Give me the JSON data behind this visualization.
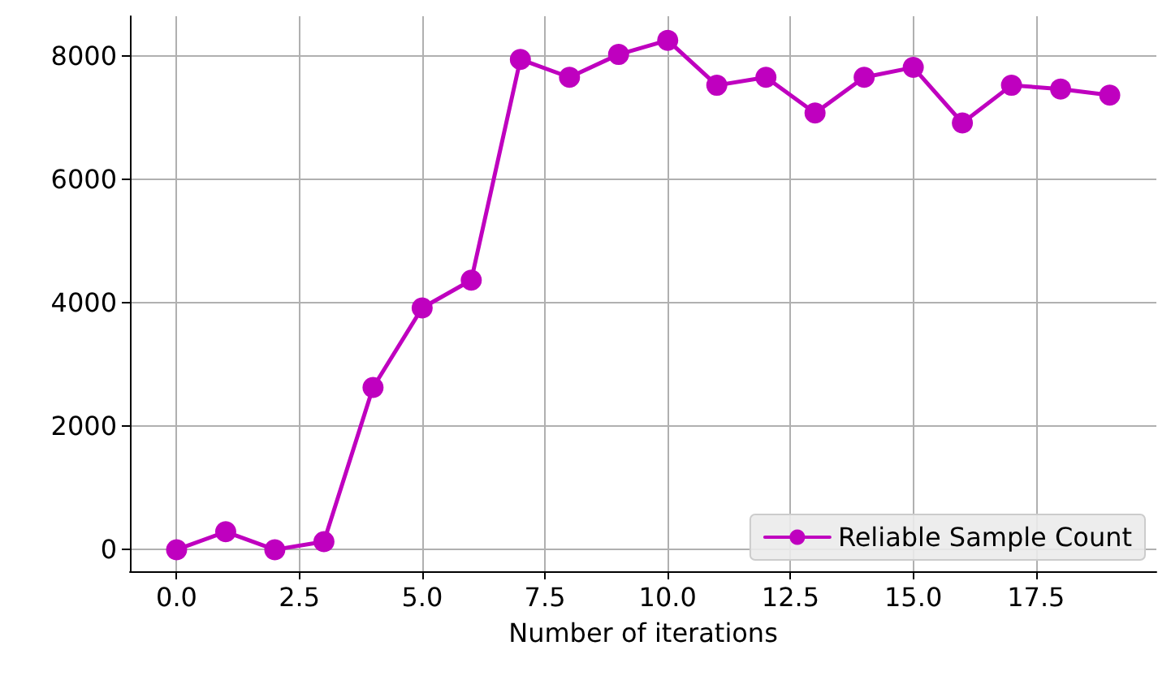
{
  "chart_data": {
    "type": "line",
    "xlabel": "Number of iterations",
    "x": [
      0,
      1,
      2,
      3,
      4,
      5,
      6,
      7,
      8,
      9,
      10,
      11,
      12,
      13,
      14,
      15,
      16,
      17,
      18,
      19
    ],
    "series": [
      {
        "name": "Reliable Sample Count",
        "color": "#bf00bf",
        "values": [
          0,
          290,
          0,
          130,
          2630,
          3920,
          4370,
          7950,
          7660,
          8030,
          8260,
          7530,
          7660,
          7080,
          7660,
          7820,
          6920,
          7530,
          7470,
          7370
        ]
      }
    ],
    "xlim": [
      -0.95,
      19.95
    ],
    "xticks": [
      {
        "value": 0,
        "label": "0.0"
      },
      {
        "value": 2.5,
        "label": "2.5"
      },
      {
        "value": 5,
        "label": "5.0"
      },
      {
        "value": 7.5,
        "label": "7.5"
      },
      {
        "value": 10,
        "label": "10.0"
      },
      {
        "value": 12.5,
        "label": "12.5"
      },
      {
        "value": 15,
        "label": "15.0"
      },
      {
        "value": 17.5,
        "label": "17.5"
      }
    ],
    "ylim": [
      -350,
      8650
    ],
    "yticks": [
      0,
      2000,
      4000,
      6000,
      8000
    ],
    "grid": true,
    "legend": "bottom right",
    "marker": "circle",
    "line_style": "solid"
  }
}
